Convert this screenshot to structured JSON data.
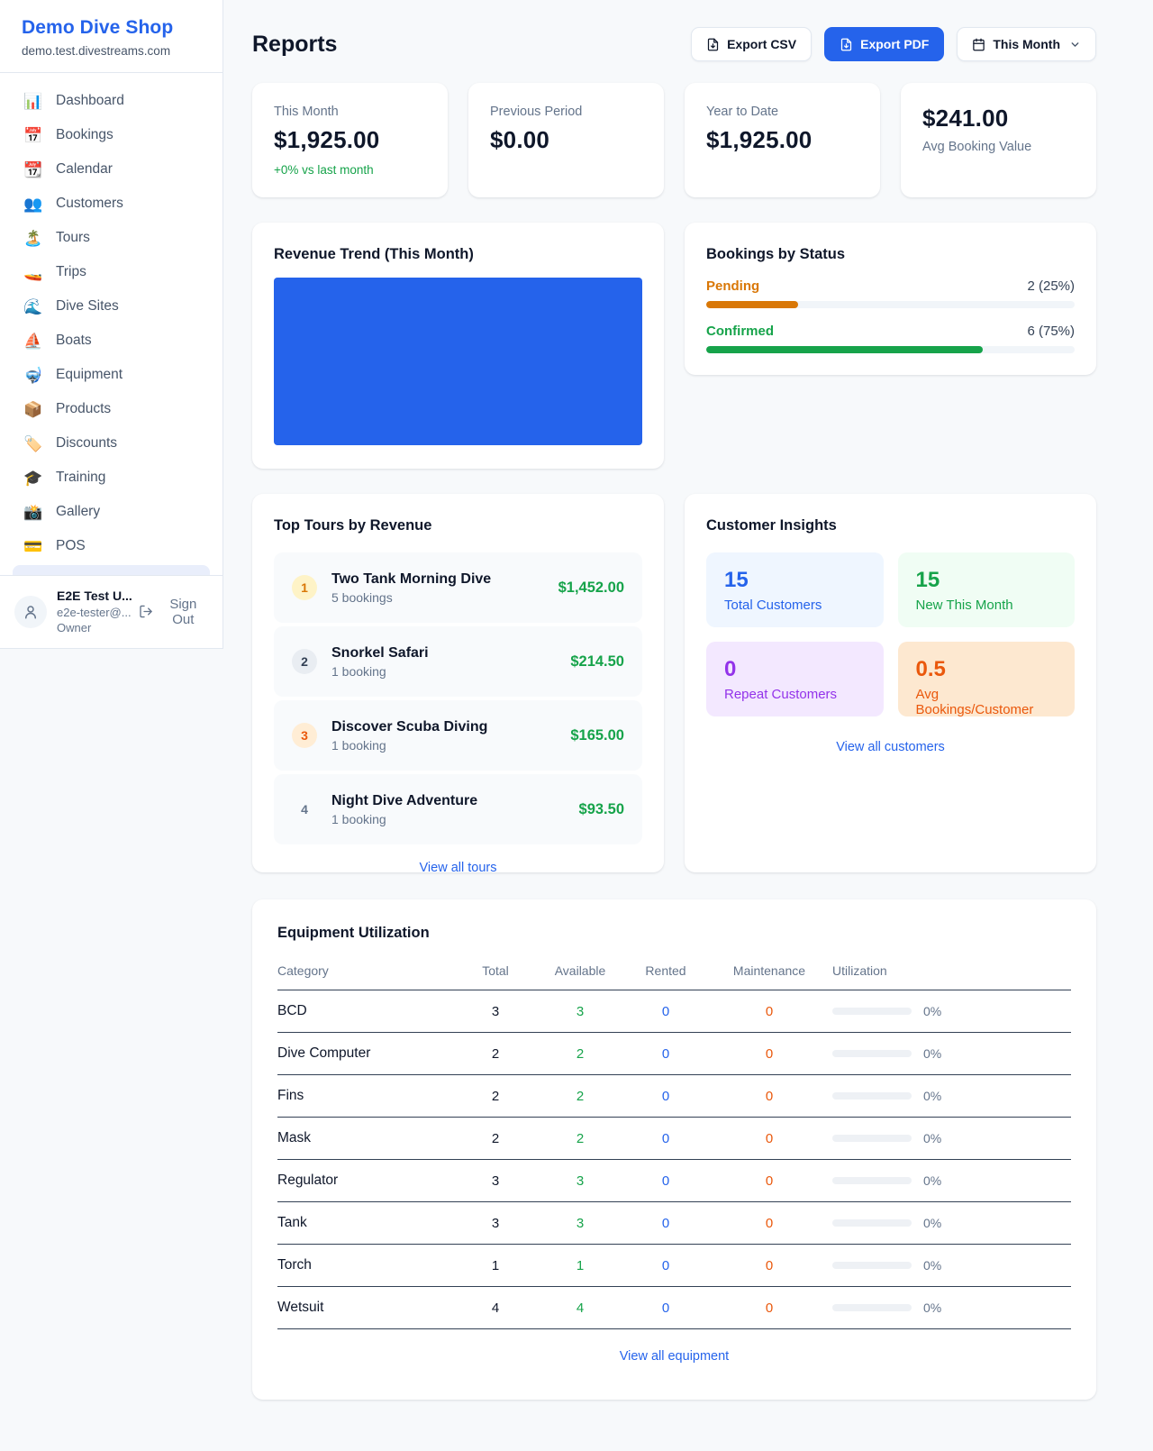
{
  "colors": {
    "accent": "#2563eb",
    "green": "#16a34a",
    "pending_orange": "#d97706",
    "deep_orange": "#ea580c",
    "purple": "#9333ea",
    "page_bg": "#f7f9fb"
  },
  "sidebar": {
    "brand": "Demo Dive Shop",
    "domain": "demo.test.divestreams.com",
    "items": [
      {
        "name": "sidebar-item-dashboard",
        "icon_name": "bar-chart-icon",
        "icon": "📊",
        "label": "Dashboard"
      },
      {
        "name": "sidebar-item-bookings",
        "icon_name": "calendar-date-icon",
        "icon": "📅",
        "label": "Bookings"
      },
      {
        "name": "sidebar-item-calendar",
        "icon_name": "tear-off-calendar-icon",
        "icon": "📆",
        "label": "Calendar"
      },
      {
        "name": "sidebar-item-customers",
        "icon_name": "people-icon",
        "icon": "👥",
        "label": "Customers"
      },
      {
        "name": "sidebar-item-tours",
        "icon_name": "island-icon",
        "icon": "🏝️",
        "label": "Tours"
      },
      {
        "name": "sidebar-item-trips",
        "icon_name": "speedboat-icon",
        "icon": "🚤",
        "label": "Trips"
      },
      {
        "name": "sidebar-item-dive-sites",
        "icon_name": "wave-icon",
        "icon": "🌊",
        "label": "Dive Sites"
      },
      {
        "name": "sidebar-item-boats",
        "icon_name": "sailboat-icon",
        "icon": "⛵",
        "label": "Boats"
      },
      {
        "name": "sidebar-item-equipment",
        "icon_name": "dive-mask-icon",
        "icon": "🤿",
        "label": "Equipment"
      },
      {
        "name": "sidebar-item-products",
        "icon_name": "package-icon",
        "icon": "📦",
        "label": "Products"
      },
      {
        "name": "sidebar-item-discounts",
        "icon_name": "tag-icon",
        "icon": "🏷️",
        "label": "Discounts"
      },
      {
        "name": "sidebar-item-training",
        "icon_name": "graduation-cap-icon",
        "icon": "🎓",
        "label": "Training"
      },
      {
        "name": "sidebar-item-gallery",
        "icon_name": "camera-flash-icon",
        "icon": "📸",
        "label": "Gallery"
      },
      {
        "name": "sidebar-item-pos",
        "icon_name": "credit-card-icon",
        "icon": "💳",
        "label": "POS"
      }
    ],
    "user": {
      "name": "E2E Test U...",
      "email": "e2e-tester@...",
      "role": "Owner",
      "sign_out_label": "Sign Out"
    }
  },
  "header": {
    "title": "Reports",
    "export_csv_label": "Export CSV",
    "export_pdf_label": "Export PDF",
    "period_label": "This Month"
  },
  "stats": [
    {
      "label": "This Month",
      "value": "$1,925.00",
      "delta": "+0% vs last month"
    },
    {
      "label": "Previous Period",
      "value": "$0.00"
    },
    {
      "label": "Year to Date",
      "value": "$1,925.00"
    },
    {
      "label": "Avg Booking Value",
      "value": "$241.00"
    }
  ],
  "revenue_trend": {
    "title": "Revenue Trend (This Month)",
    "bar_color": "#2563eb"
  },
  "bookings_by_status": {
    "title": "Bookings by Status",
    "rows": [
      {
        "label": "Pending",
        "count": "2 (25%)",
        "pct": 25,
        "color": "#d97706"
      },
      {
        "label": "Confirmed",
        "count": "6 (75%)",
        "pct": 75,
        "color": "#16a34a"
      }
    ]
  },
  "top_tours": {
    "title": "Top Tours by Revenue",
    "rows": [
      {
        "rank": "1",
        "badge": "gold",
        "name": "Two Tank Morning Dive",
        "bookings": "5 bookings",
        "amount": "$1,452.00"
      },
      {
        "rank": "2",
        "badge": "silver",
        "name": "Snorkel Safari",
        "bookings": "1 booking",
        "amount": "$214.50"
      },
      {
        "rank": "3",
        "badge": "bronze",
        "name": "Discover Scuba Diving",
        "bookings": "1 booking",
        "amount": "$165.00"
      },
      {
        "rank": "4",
        "badge": "plain",
        "name": "Night Dive Adventure",
        "bookings": "1 booking",
        "amount": "$93.50"
      }
    ],
    "link": "View all tours"
  },
  "customer_insights": {
    "title": "Customer Insights",
    "tiles": [
      {
        "value": "15",
        "label": "Total Customers",
        "fg": "#2563eb",
        "bg": "#eff6ff"
      },
      {
        "value": "15",
        "label": "New This Month",
        "fg": "#16a34a",
        "bg": "#f0fdf4"
      },
      {
        "value": "0",
        "label": "Repeat Customers",
        "fg": "#9333ea",
        "bg": "#f3e8ff"
      },
      {
        "value": "0.5",
        "label": "Avg Bookings/Customer",
        "fg": "#ea580c",
        "bg": "#fde8d0"
      }
    ],
    "link": "View all customers"
  },
  "equipment": {
    "title": "Equipment Utilization",
    "columns": [
      "Category",
      "Total",
      "Available",
      "Rented",
      "Maintenance",
      "Utilization"
    ],
    "rows": [
      {
        "category": "BCD",
        "total": "3",
        "available": "3",
        "rented": "0",
        "maintenance": "0",
        "utilization": "0%",
        "util_pct": 0
      },
      {
        "category": "Dive Computer",
        "total": "2",
        "available": "2",
        "rented": "0",
        "maintenance": "0",
        "utilization": "0%",
        "util_pct": 0
      },
      {
        "category": "Fins",
        "total": "2",
        "available": "2",
        "rented": "0",
        "maintenance": "0",
        "utilization": "0%",
        "util_pct": 0
      },
      {
        "category": "Mask",
        "total": "2",
        "available": "2",
        "rented": "0",
        "maintenance": "0",
        "utilization": "0%",
        "util_pct": 0
      },
      {
        "category": "Regulator",
        "total": "3",
        "available": "3",
        "rented": "0",
        "maintenance": "0",
        "utilization": "0%",
        "util_pct": 0
      },
      {
        "category": "Tank",
        "total": "3",
        "available": "3",
        "rented": "0",
        "maintenance": "0",
        "utilization": "0%",
        "util_pct": 0
      },
      {
        "category": "Torch",
        "total": "1",
        "available": "1",
        "rented": "0",
        "maintenance": "0",
        "utilization": "0%",
        "util_pct": 0
      },
      {
        "category": "Wetsuit",
        "total": "4",
        "available": "4",
        "rented": "0",
        "maintenance": "0",
        "utilization": "0%",
        "util_pct": 0
      }
    ],
    "link": "View all equipment"
  }
}
